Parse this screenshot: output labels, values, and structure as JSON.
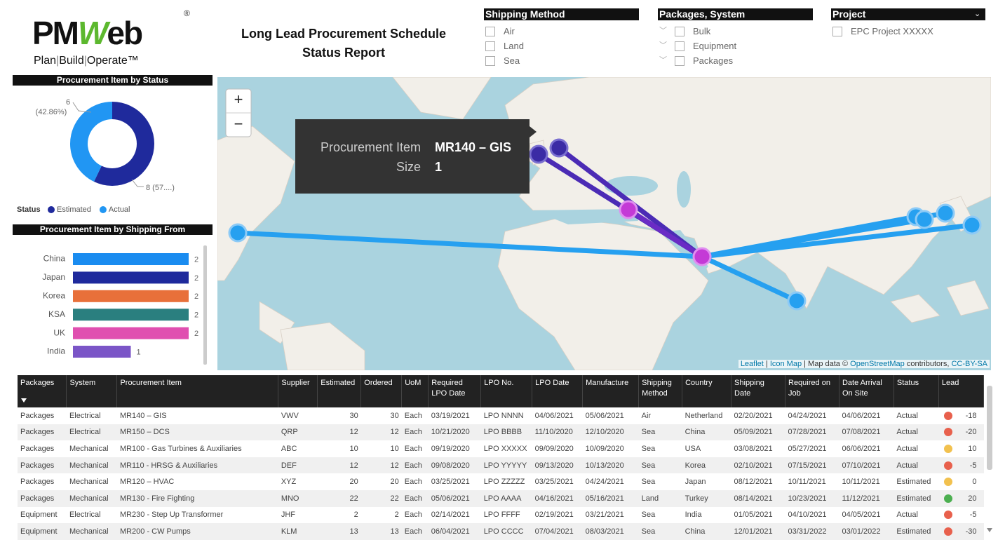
{
  "logo": {
    "parts": [
      "PM",
      "W",
      "eb"
    ],
    "mark": "®",
    "tagline": [
      "Plan",
      "Build",
      "Operate™"
    ]
  },
  "header": {
    "title": [
      "Long Lead Procurement Schedule",
      "Status Report"
    ]
  },
  "filters": [
    {
      "title": "Shipping Method",
      "items": [
        "Air",
        "Land",
        "Sea"
      ],
      "expandable": false,
      "dropdown": false
    },
    {
      "title": "Packages, System",
      "items": [
        "Bulk",
        "Equipment",
        "Packages"
      ],
      "expandable": true,
      "dropdown": false
    },
    {
      "title": "Project",
      "items": [
        "EPC Project XXXXX"
      ],
      "expandable": false,
      "dropdown": true
    }
  ],
  "chart_data": [
    {
      "type": "pie",
      "title": "Procurement Item by Status",
      "legend_title": "Status",
      "categories": [
        "Estimated",
        "Actual"
      ],
      "values": [
        8,
        6
      ],
      "colors": [
        "#1f2a9c",
        "#2196f3"
      ],
      "value_labels": [
        [
          "8 (57....)"
        ],
        [
          "6",
          "(42.86%)"
        ]
      ]
    },
    {
      "type": "bar",
      "title": "Procurement Item by Shipping From",
      "categories": [
        "China",
        "Japan",
        "Korea",
        "KSA",
        "UK",
        "India"
      ],
      "values": [
        2,
        2,
        2,
        2,
        2,
        1
      ],
      "colors": [
        "#1a8cf0",
        "#1f2a9c",
        "#e8703a",
        "#2a7f7f",
        "#e04fb0",
        "#7b55c7"
      ]
    }
  ],
  "map": {
    "zoom": [
      "+",
      "−"
    ],
    "tooltip": {
      "labels": [
        "Procurement Item",
        "Size"
      ],
      "values": [
        "MR140 – GIS",
        "1"
      ]
    },
    "attribution": [
      {
        "text": "Leaflet",
        "link": true
      },
      {
        "text": " | ",
        "link": false
      },
      {
        "text": "Icon Map",
        "link": true
      },
      {
        "text": " | Map data © ",
        "link": false
      },
      {
        "text": "OpenStreetMap",
        "link": true
      },
      {
        "text": " contributors, ",
        "link": false
      },
      {
        "text": "CC-BY-SA",
        "link": true
      }
    ]
  },
  "table": {
    "headers": [
      "Packages",
      "System",
      "Procurement Item",
      "Supplier",
      "Estimated",
      "Ordered",
      "UoM",
      "Required LPO Date",
      "LPO No.",
      "LPO Date",
      "Manufacture",
      "Shipping Method",
      "Country",
      "Shipping Date",
      "Required on Job",
      "Date Arrival On Site",
      "Status",
      "Lead"
    ],
    "rows": [
      [
        "Packages",
        "Electrical",
        "MR140 – GIS",
        "VWV",
        "30",
        "30",
        "Each",
        "03/19/2021",
        "LPO NNNN",
        "04/06/2021",
        "05/06/2021",
        "Air",
        "Netherland",
        "02/20/2021",
        "04/24/2021",
        "04/06/2021",
        "Actual",
        "-18"
      ],
      [
        "Packages",
        "Electrical",
        "MR150 – DCS",
        "QRP",
        "12",
        "12",
        "Each",
        "10/21/2020",
        "LPO BBBB",
        "11/10/2020",
        "12/10/2020",
        "Sea",
        "China",
        "05/09/2021",
        "07/28/2021",
        "07/08/2021",
        "Actual",
        "-20"
      ],
      [
        "Packages",
        "Mechanical",
        "MR100 - Gas Turbines & Auxiliaries",
        "ABC",
        "10",
        "10",
        "Each",
        "09/19/2020",
        "LPO XXXXX",
        "09/09/2020",
        "10/09/2020",
        "Sea",
        "USA",
        "03/08/2021",
        "05/27/2021",
        "06/06/2021",
        "Actual",
        "10"
      ],
      [
        "Packages",
        "Mechanical",
        "MR110 - HRSG & Auxiliaries",
        "DEF",
        "12",
        "12",
        "Each",
        "09/08/2020",
        "LPO YYYYY",
        "09/13/2020",
        "10/13/2020",
        "Sea",
        "Korea",
        "02/10/2021",
        "07/15/2021",
        "07/10/2021",
        "Actual",
        "-5"
      ],
      [
        "Packages",
        "Mechanical",
        "MR120 – HVAC",
        "XYZ",
        "20",
        "20",
        "Each",
        "03/25/2021",
        "LPO ZZZZZ",
        "03/25/2021",
        "04/24/2021",
        "Sea",
        "Japan",
        "08/12/2021",
        "10/11/2021",
        "10/11/2021",
        "Estimated",
        "0"
      ],
      [
        "Packages",
        "Mechanical",
        "MR130 - Fire Fighting",
        "MNO",
        "22",
        "22",
        "Each",
        "05/06/2021",
        "LPO AAAA",
        "04/16/2021",
        "05/16/2021",
        "Land",
        "Turkey",
        "08/14/2021",
        "10/23/2021",
        "11/12/2021",
        "Estimated",
        "20"
      ],
      [
        "Equipment",
        "Electrical",
        "MR230 - Step Up Transformer",
        "JHF",
        "2",
        "2",
        "Each",
        "02/14/2021",
        "LPO FFFF",
        "02/19/2021",
        "03/21/2021",
        "Sea",
        "India",
        "01/05/2021",
        "04/10/2021",
        "04/05/2021",
        "Actual",
        "-5"
      ],
      [
        "Equipment",
        "Mechanical",
        "MR200 - CW Pumps",
        "KLM",
        "13",
        "13",
        "Each",
        "06/04/2021",
        "LPO CCCC",
        "07/04/2021",
        "08/03/2021",
        "Sea",
        "China",
        "12/01/2021",
        "03/31/2022",
        "03/01/2022",
        "Estimated",
        "-30"
      ]
    ],
    "lead_colors": [
      "#e8604c",
      "#e8604c",
      "#f2c14e",
      "#e8604c",
      "#f2c14e",
      "#4caf50",
      "#e8604c",
      "#e8604c"
    ]
  }
}
